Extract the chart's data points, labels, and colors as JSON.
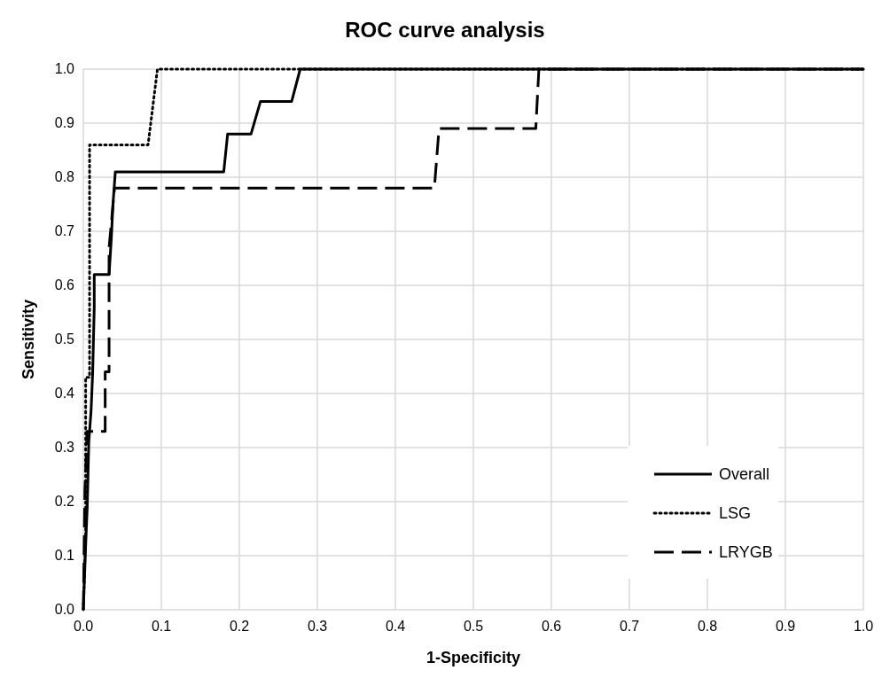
{
  "chart_data": {
    "type": "line",
    "title": "ROC curve analysis",
    "xlabel": "1-Specificity",
    "ylabel": "Sensitivity",
    "xlim": [
      0,
      1
    ],
    "ylim": [
      0,
      1
    ],
    "xticks": [
      {
        "value": 0,
        "label": "0.0"
      },
      0.1,
      0.2,
      0.3,
      0.4,
      0.5,
      0.6,
      0.7,
      0.8,
      0.9,
      {
        "value": 1,
        "label": "1.0"
      }
    ],
    "yticks": [
      {
        "value": 0,
        "label": "0.0"
      },
      0.1,
      0.2,
      0.3,
      0.4,
      0.5,
      0.6,
      0.7,
      0.8,
      0.9,
      {
        "value": 1,
        "label": "1.0"
      }
    ],
    "grid": true,
    "legend": "bottom right",
    "marker": "none",
    "series": [
      {
        "name": "Overall",
        "color": "#000000",
        "line_style": "solid",
        "x": [
          0,
          0.003,
          0.005,
          0.007,
          0.01,
          0.012,
          0.014,
          0.014,
          0.033,
          0.036,
          0.038,
          0.041,
          0.18,
          0.185,
          0.215,
          0.227,
          0.267,
          0.278,
          1
        ],
        "values": [
          0,
          0.12,
          0.19,
          0.31,
          0.37,
          0.44,
          0.56,
          0.62,
          0.62,
          0.69,
          0.75,
          0.81,
          0.81,
          0.88,
          0.88,
          0.94,
          0.94,
          1,
          1
        ]
      },
      {
        "name": "LSG",
        "color": "#000000",
        "line_style": "dotted",
        "x": [
          0,
          0.003,
          0.003,
          0.008,
          0.008,
          0.083,
          0.095,
          1
        ],
        "values": [
          0,
          0.14,
          0.43,
          0.43,
          0.86,
          0.86,
          1,
          1
        ]
      },
      {
        "name": "LRYGB",
        "color": "#000000",
        "line_style": "dashed",
        "x": [
          0,
          0.001,
          0.002,
          0.005,
          0.028,
          0.028,
          0.033,
          0.033,
          0.04,
          0.45,
          0.456,
          0.58,
          0.584,
          1
        ],
        "values": [
          0,
          0.11,
          0.22,
          0.33,
          0.33,
          0.44,
          0.44,
          0.67,
          0.78,
          0.78,
          0.89,
          0.89,
          1,
          1
        ]
      }
    ]
  }
}
